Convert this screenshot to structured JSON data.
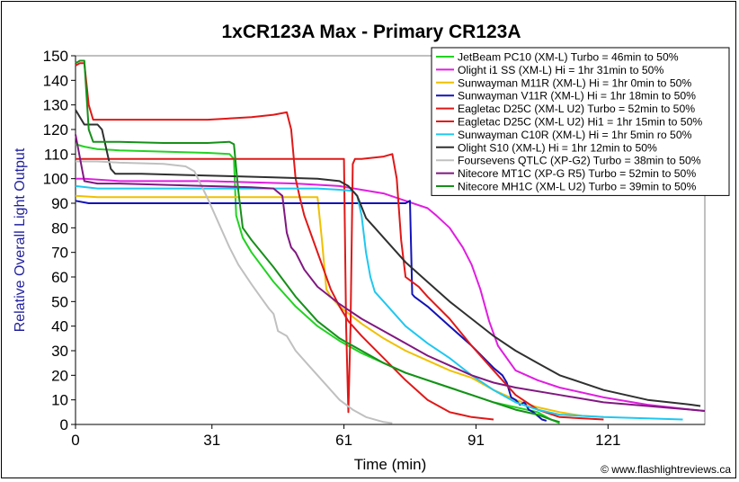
{
  "chart_data": {
    "type": "line",
    "title": "1xCR123A Max - Primary CR123A",
    "xlabel": "Time (min)",
    "ylabel": "Relative Overall Light Output",
    "credit": "© www.flashlightreviews.ca",
    "xlim": [
      0,
      143
    ],
    "ylim": [
      0,
      150
    ],
    "xticks": [
      0,
      31,
      61,
      91,
      121
    ],
    "yticks": [
      0,
      10,
      20,
      30,
      40,
      50,
      60,
      70,
      80,
      90,
      100,
      110,
      120,
      130,
      140,
      150
    ],
    "grid": false,
    "legend_position": "top-right",
    "series": [
      {
        "name": "JetBeam PC10 (XM-L) Turbo = 46min to 50%",
        "color": "#22d322",
        "points": [
          [
            0,
            114
          ],
          [
            2,
            113
          ],
          [
            5,
            112
          ],
          [
            10,
            111.5
          ],
          [
            20,
            111
          ],
          [
            30,
            110.5
          ],
          [
            35,
            110
          ],
          [
            36,
            108
          ],
          [
            36.5,
            85
          ],
          [
            37,
            82
          ],
          [
            38,
            76
          ],
          [
            40,
            70
          ],
          [
            45,
            58
          ],
          [
            50,
            48
          ],
          [
            55,
            40
          ],
          [
            60,
            34
          ],
          [
            65,
            29
          ],
          [
            70,
            25
          ],
          [
            75,
            21
          ],
          [
            80,
            18
          ],
          [
            85,
            15
          ],
          [
            90,
            12
          ],
          [
            95,
            9
          ],
          [
            100,
            7
          ],
          [
            105,
            5
          ],
          [
            108,
            2
          ],
          [
            110,
            0.5
          ]
        ]
      },
      {
        "name": "Olight i1 SS (XM-L) Hi = 1hr 31min to 50%",
        "color": "#e01ee0",
        "points": [
          [
            0,
            100
          ],
          [
            2,
            100
          ],
          [
            10,
            99
          ],
          [
            20,
            99
          ],
          [
            30,
            99
          ],
          [
            40,
            98.5
          ],
          [
            50,
            98
          ],
          [
            60,
            97
          ],
          [
            70,
            94
          ],
          [
            75,
            91
          ],
          [
            80,
            88
          ],
          [
            82,
            85
          ],
          [
            85,
            80
          ],
          [
            88,
            72
          ],
          [
            90,
            65
          ],
          [
            92,
            55
          ],
          [
            94,
            42
          ],
          [
            96,
            32
          ],
          [
            100,
            22
          ],
          [
            105,
            18
          ],
          [
            110,
            15
          ],
          [
            120,
            11
          ],
          [
            130,
            8
          ],
          [
            140,
            6
          ],
          [
            143,
            5.5
          ]
        ]
      },
      {
        "name": "Sunwayman M11R (XM-L) Hi = 1hr 0min to 50%",
        "color": "#f0c000",
        "points": [
          [
            0,
            93
          ],
          [
            5,
            92.5
          ],
          [
            15,
            92.5
          ],
          [
            25,
            92.5
          ],
          [
            35,
            92.5
          ],
          [
            45,
            92.5
          ],
          [
            55,
            92.5
          ],
          [
            56,
            75
          ],
          [
            57,
            55
          ],
          [
            58,
            52
          ],
          [
            60,
            48
          ],
          [
            65,
            41
          ],
          [
            70,
            35
          ],
          [
            75,
            30
          ],
          [
            80,
            26
          ],
          [
            85,
            22
          ],
          [
            90,
            19
          ],
          [
            95,
            14
          ],
          [
            100,
            10
          ],
          [
            105,
            7
          ],
          [
            110,
            5
          ],
          [
            115,
            3.5
          ],
          [
            120,
            3
          ]
        ]
      },
      {
        "name": "Sunwayman V11R (XM-L) Hi = 1hr 18min to 50%",
        "color": "#1313b8",
        "points": [
          [
            0,
            91
          ],
          [
            3,
            90
          ],
          [
            10,
            90
          ],
          [
            20,
            90
          ],
          [
            30,
            90
          ],
          [
            40,
            90
          ],
          [
            50,
            90
          ],
          [
            60,
            90
          ],
          [
            70,
            90
          ],
          [
            75,
            90
          ],
          [
            76,
            91
          ],
          [
            76.5,
            53
          ],
          [
            77,
            52
          ],
          [
            80,
            48
          ],
          [
            85,
            40
          ],
          [
            90,
            32
          ],
          [
            95,
            23
          ],
          [
            97,
            20
          ],
          [
            98,
            17
          ],
          [
            99,
            11
          ],
          [
            100,
            10
          ],
          [
            101,
            8
          ],
          [
            102,
            9
          ],
          [
            103,
            6
          ],
          [
            104,
            5
          ],
          [
            105,
            3.5
          ],
          [
            106,
            2
          ],
          [
            107,
            1.5
          ]
        ]
      },
      {
        "name": "Eagletac D25C (XM-L U2) Turbo  = 52min to 50%",
        "color": "#e01818",
        "points": [
          [
            0,
            146
          ],
          [
            1,
            147
          ],
          [
            2,
            147
          ],
          [
            3,
            130
          ],
          [
            4,
            124
          ],
          [
            10,
            124
          ],
          [
            20,
            124
          ],
          [
            30,
            124
          ],
          [
            40,
            125
          ],
          [
            45,
            126
          ],
          [
            48,
            127
          ],
          [
            49,
            120
          ],
          [
            50,
            100
          ],
          [
            51,
            92
          ],
          [
            52,
            85
          ],
          [
            54,
            75
          ],
          [
            56,
            65
          ],
          [
            58,
            55
          ],
          [
            60,
            48
          ],
          [
            62,
            42
          ],
          [
            65,
            36
          ],
          [
            70,
            27
          ],
          [
            75,
            18
          ],
          [
            80,
            10
          ],
          [
            85,
            5
          ],
          [
            90,
            3
          ],
          [
            95,
            2
          ]
        ]
      },
      {
        "name": "Eagletac D25C (XM-L U2) Hi1 = 1hr 15min to 50%",
        "color": "#e01818",
        "points": [
          [
            0,
            108
          ],
          [
            10,
            108
          ],
          [
            20,
            108
          ],
          [
            30,
            108
          ],
          [
            40,
            108
          ],
          [
            50,
            108
          ],
          [
            55,
            108
          ],
          [
            60,
            108
          ],
          [
            61,
            108
          ],
          [
            61.5,
            40
          ],
          [
            62,
            5
          ],
          [
            62.5,
            40
          ],
          [
            63,
            106
          ],
          [
            63.5,
            108
          ],
          [
            65,
            108
          ],
          [
            70,
            109
          ],
          [
            72,
            110
          ],
          [
            73,
            100
          ],
          [
            74,
            75
          ],
          [
            75,
            60
          ],
          [
            78,
            56
          ],
          [
            80,
            52
          ],
          [
            85,
            43
          ],
          [
            90,
            32
          ],
          [
            95,
            22
          ],
          [
            100,
            12
          ],
          [
            105,
            6
          ],
          [
            110,
            3
          ],
          [
            120,
            2
          ]
        ]
      },
      {
        "name": "Sunwayman C10R (XM-L) Hi = 1hr 5min ro 50%",
        "color": "#1ec8f0",
        "points": [
          [
            0,
            97
          ],
          [
            5,
            96
          ],
          [
            15,
            96
          ],
          [
            25,
            96
          ],
          [
            35,
            96
          ],
          [
            45,
            96
          ],
          [
            55,
            96
          ],
          [
            60,
            95.5
          ],
          [
            63,
            95
          ],
          [
            64,
            93
          ],
          [
            65,
            85
          ],
          [
            66,
            70
          ],
          [
            67,
            60
          ],
          [
            68,
            54
          ],
          [
            70,
            50
          ],
          [
            75,
            40
          ],
          [
            80,
            33
          ],
          [
            85,
            27
          ],
          [
            90,
            20
          ],
          [
            95,
            14
          ],
          [
            100,
            9
          ],
          [
            105,
            6
          ],
          [
            110,
            4
          ],
          [
            120,
            3
          ],
          [
            130,
            2.5
          ],
          [
            138,
            2
          ]
        ]
      },
      {
        "name": "Olight S10 (XM-L) Hi = 1hr 12min to 50%",
        "color": "#303030",
        "points": [
          [
            0,
            128
          ],
          [
            2,
            122
          ],
          [
            5,
            122
          ],
          [
            6,
            120
          ],
          [
            8,
            104
          ],
          [
            9,
            102
          ],
          [
            15,
            102
          ],
          [
            25,
            101.5
          ],
          [
            35,
            101
          ],
          [
            45,
            100.5
          ],
          [
            55,
            100
          ],
          [
            60,
            99
          ],
          [
            62,
            97
          ],
          [
            64,
            93
          ],
          [
            66,
            84
          ],
          [
            68,
            80
          ],
          [
            70,
            76
          ],
          [
            75,
            66
          ],
          [
            80,
            58
          ],
          [
            85,
            50
          ],
          [
            90,
            43
          ],
          [
            95,
            36
          ],
          [
            100,
            30
          ],
          [
            105,
            25
          ],
          [
            110,
            20
          ],
          [
            120,
            14
          ],
          [
            130,
            10
          ],
          [
            140,
            8
          ],
          [
            142,
            7.5
          ]
        ]
      },
      {
        "name": "Foursevens QTLC (XP-G2) Turbo = 38min to 50%",
        "color": "#c0c0c0",
        "points": [
          [
            0,
            107
          ],
          [
            5,
            107
          ],
          [
            10,
            106.5
          ],
          [
            20,
            106
          ],
          [
            25,
            105
          ],
          [
            27,
            103
          ],
          [
            30,
            92
          ],
          [
            33,
            80
          ],
          [
            35,
            72
          ],
          [
            37,
            65
          ],
          [
            40,
            57
          ],
          [
            42,
            52
          ],
          [
            44,
            47
          ],
          [
            45,
            45
          ],
          [
            46,
            38
          ],
          [
            48,
            36
          ],
          [
            50,
            30
          ],
          [
            53,
            24
          ],
          [
            56,
            18
          ],
          [
            60,
            10
          ],
          [
            63,
            6
          ],
          [
            66,
            3
          ],
          [
            70,
            1
          ],
          [
            72,
            0.5
          ]
        ]
      },
      {
        "name": "Nitecore MT1C (XP-G R5) Turbo = 52min to 50%",
        "color": "#801880",
        "points": [
          [
            0,
            118
          ],
          [
            2,
            99
          ],
          [
            5,
            98
          ],
          [
            10,
            98
          ],
          [
            20,
            97.5
          ],
          [
            30,
            97
          ],
          [
            40,
            96.5
          ],
          [
            45,
            96
          ],
          [
            47,
            93
          ],
          [
            48,
            78
          ],
          [
            49,
            72
          ],
          [
            50,
            70
          ],
          [
            52,
            63
          ],
          [
            55,
            56
          ],
          [
            60,
            49
          ],
          [
            65,
            43
          ],
          [
            70,
            38
          ],
          [
            75,
            33
          ],
          [
            80,
            28
          ],
          [
            85,
            24
          ],
          [
            90,
            20
          ],
          [
            95,
            17
          ],
          [
            100,
            15
          ],
          [
            110,
            12
          ],
          [
            120,
            9
          ],
          [
            130,
            7.5
          ],
          [
            140,
            6
          ],
          [
            143,
            5.5
          ]
        ]
      },
      {
        "name": "Nitecore MH1C (XM-L U2) Turbo = 39min to 50%",
        "color": "#16901a",
        "points": [
          [
            0,
            147
          ],
          [
            1,
            148
          ],
          [
            2,
            148
          ],
          [
            3,
            120
          ],
          [
            4,
            115
          ],
          [
            10,
            115
          ],
          [
            20,
            114.5
          ],
          [
            30,
            114.5
          ],
          [
            35,
            115
          ],
          [
            36,
            114
          ],
          [
            37,
            95
          ],
          [
            38,
            80
          ],
          [
            40,
            75
          ],
          [
            45,
            64
          ],
          [
            50,
            52
          ],
          [
            55,
            42
          ],
          [
            60,
            35
          ],
          [
            65,
            30
          ],
          [
            70,
            25
          ],
          [
            75,
            21
          ],
          [
            80,
            18
          ],
          [
            85,
            15
          ],
          [
            90,
            12
          ],
          [
            95,
            9
          ],
          [
            100,
            6
          ],
          [
            105,
            4
          ],
          [
            108,
            2
          ],
          [
            110,
            1
          ]
        ]
      }
    ]
  }
}
